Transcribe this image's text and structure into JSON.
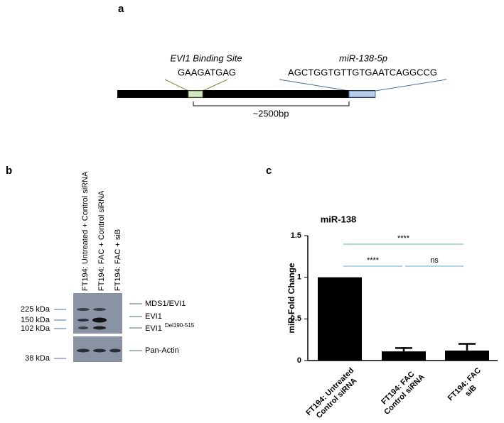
{
  "panel_labels": [
    "a",
    "b",
    "c"
  ],
  "diagram": {
    "binding_site_label": "EVI1 Binding Site",
    "binding_site_sequence": "GAAGATGAG",
    "mirna_label": "miR-138-5p",
    "mirna_sequence": "AGCTGGTGTTGTGAATCAGGCCG",
    "distance": "~2500bp"
  },
  "blot": {
    "lanes": [
      "FT194: Untreated + Control siRNA",
      "FT194: FAC + Control siRNA",
      "FT194: FAC + siB"
    ],
    "markers": [
      "225 kDa",
      "150 kDa",
      "102 kDa",
      "38 kDa"
    ],
    "bands": [
      {
        "label": "MDS1/EVI1"
      },
      {
        "label": "EVI1"
      },
      {
        "label": "EVI1",
        "superscript": "Del190-515"
      },
      {
        "label": "Pan-Actin"
      }
    ]
  },
  "chart_data": {
    "type": "bar",
    "title": "miR-138",
    "y_label": "miR-Fold Change",
    "categories": [
      "FT194: Untreated\nControl siRNA",
      "FT194: FAC\nControl siRNA",
      "FT194: FAC\nsiB"
    ],
    "values": [
      1.0,
      0.11,
      0.12
    ],
    "errors": [
      null,
      0.04,
      0.08
    ],
    "color": "#000000",
    "ylim": [
      0,
      1.5
    ],
    "yticks": [
      0,
      0.5,
      1,
      1.5
    ],
    "annotations": [
      {
        "label": "****"
      },
      {
        "label": "****"
      },
      {
        "label": "ns"
      }
    ]
  }
}
